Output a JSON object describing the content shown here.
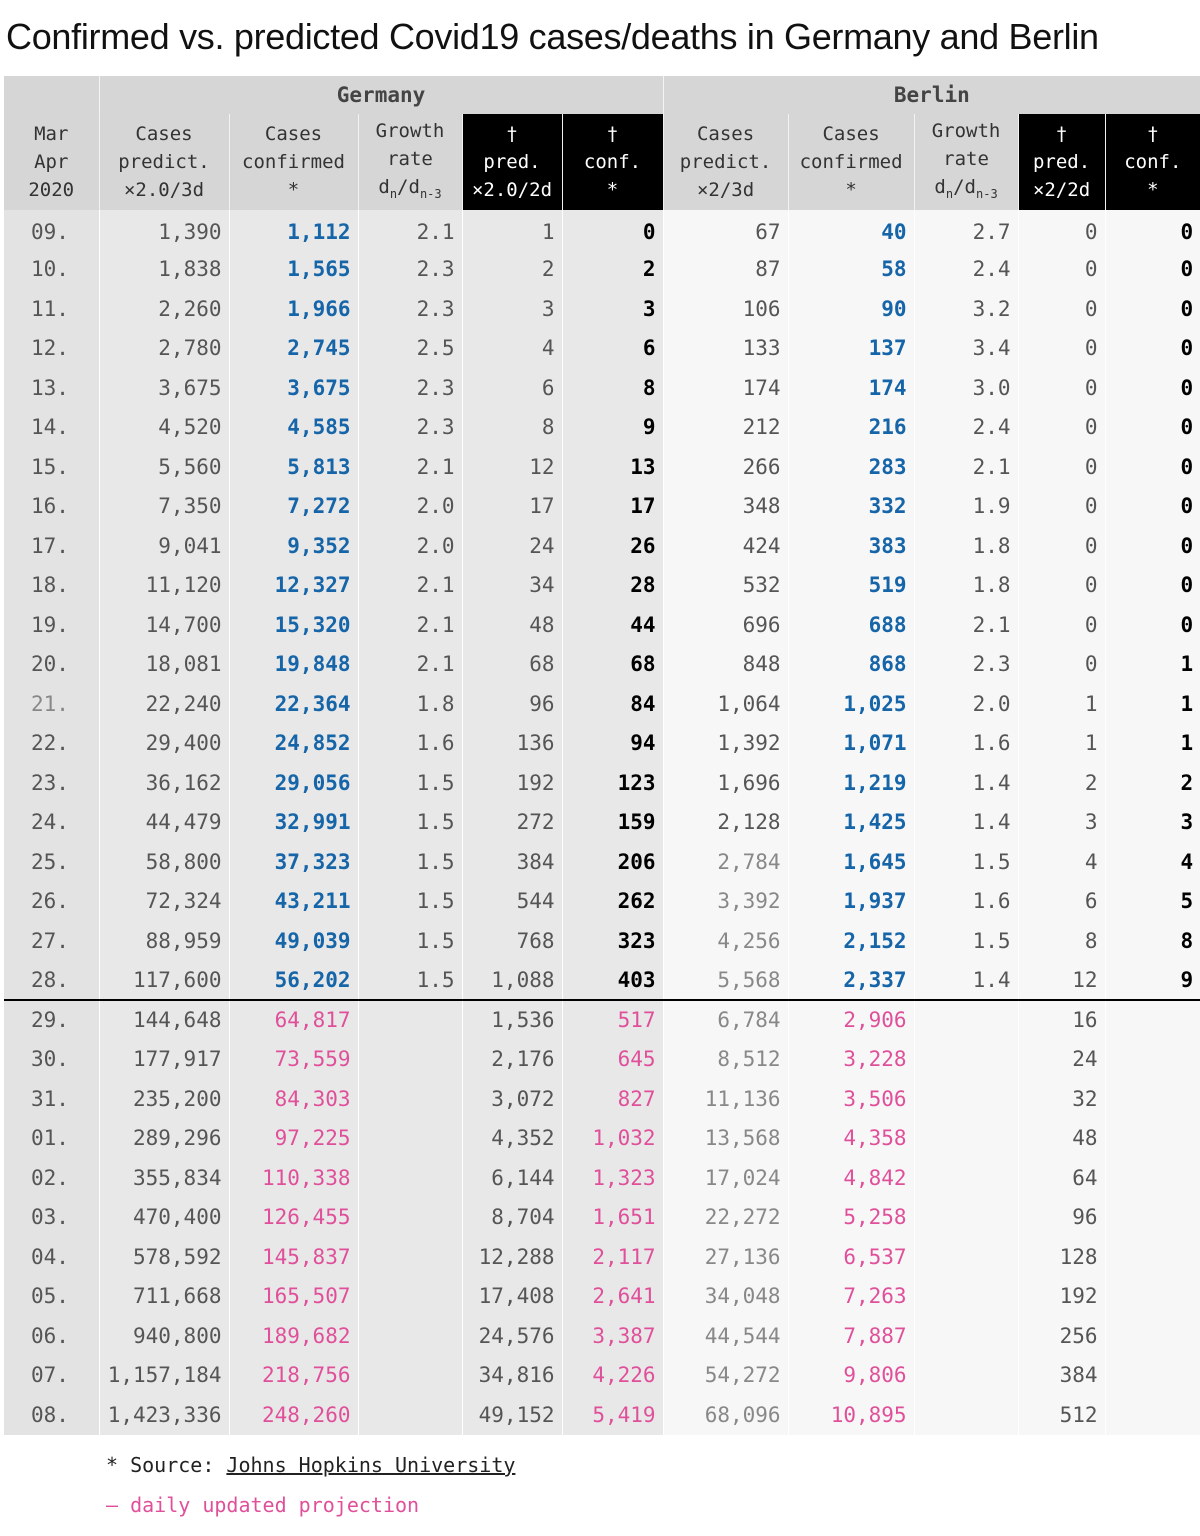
{
  "title": "Confirmed vs. predicted Covid19 cases/deaths in Germany and Berlin",
  "groups": {
    "germany": "Germany",
    "berlin": "Berlin"
  },
  "columns": {
    "date": [
      "Mar",
      "Apr",
      "2020"
    ],
    "ger_pred": [
      "Cases",
      "predict.",
      "×2.0/3d"
    ],
    "ger_conf": [
      "Cases",
      "confirmed",
      "*"
    ],
    "ger_growth": [
      "Growth",
      "rate",
      "dn/dn-3"
    ],
    "ger_dpred": [
      "†",
      "pred.",
      "×2.0/2d"
    ],
    "ger_dconf": [
      "†",
      "conf.",
      "*"
    ],
    "ber_pred": [
      "Cases",
      "predict.",
      "×2/3d"
    ],
    "ber_conf": [
      "Cases",
      "confirmed",
      "*"
    ],
    "ber_growth": [
      "Growth",
      "rate",
      "dn/dn-3"
    ],
    "ber_dpred": [
      "†",
      "pred.",
      "×2/2d"
    ],
    "ber_dconf": [
      "†",
      "conf.",
      "*"
    ]
  },
  "rows": [
    [
      "09.",
      "1,390",
      "1,112",
      "2.1",
      "1",
      "0",
      "67",
      "40",
      "2.7",
      "0",
      "0"
    ],
    [
      "10.",
      "1,838",
      "1,565",
      "2.3",
      "2",
      "2",
      "87",
      "58",
      "2.4",
      "0",
      "0"
    ],
    [
      "11.",
      "2,260",
      "1,966",
      "2.3",
      "3",
      "3",
      "106",
      "90",
      "3.2",
      "0",
      "0"
    ],
    [
      "12.",
      "2,780",
      "2,745",
      "2.5",
      "4",
      "6",
      "133",
      "137",
      "3.4",
      "0",
      "0"
    ],
    [
      "13.",
      "3,675",
      "3,675",
      "2.3",
      "6",
      "8",
      "174",
      "174",
      "3.0",
      "0",
      "0"
    ],
    [
      "14.",
      "4,520",
      "4,585",
      "2.3",
      "8",
      "9",
      "212",
      "216",
      "2.4",
      "0",
      "0"
    ],
    [
      "15.",
      "5,560",
      "5,813",
      "2.1",
      "12",
      "13",
      "266",
      "283",
      "2.1",
      "0",
      "0"
    ],
    [
      "16.",
      "7,350",
      "7,272",
      "2.0",
      "17",
      "17",
      "348",
      "332",
      "1.9",
      "0",
      "0"
    ],
    [
      "17.",
      "9,041",
      "9,352",
      "2.0",
      "24",
      "26",
      "424",
      "383",
      "1.8",
      "0",
      "0"
    ],
    [
      "18.",
      "11,120",
      "12,327",
      "2.1",
      "34",
      "28",
      "532",
      "519",
      "1.8",
      "0",
      "0"
    ],
    [
      "19.",
      "14,700",
      "15,320",
      "2.1",
      "48",
      "44",
      "696",
      "688",
      "2.1",
      "0",
      "0"
    ],
    [
      "20.",
      "18,081",
      "19,848",
      "2.1",
      "68",
      "68",
      "848",
      "868",
      "2.3",
      "0",
      "1"
    ],
    [
      "21.",
      "22,240",
      "22,364",
      "1.8",
      "96",
      "84",
      "1,064",
      "1,025",
      "2.0",
      "1",
      "1"
    ],
    [
      "22.",
      "29,400",
      "24,852",
      "1.6",
      "136",
      "94",
      "1,392",
      "1,071",
      "1.6",
      "1",
      "1"
    ],
    [
      "23.",
      "36,162",
      "29,056",
      "1.5",
      "192",
      "123",
      "1,696",
      "1,219",
      "1.4",
      "2",
      "2"
    ],
    [
      "24.",
      "44,479",
      "32,991",
      "1.5",
      "272",
      "159",
      "2,128",
      "1,425",
      "1.4",
      "3",
      "3"
    ],
    [
      "25.",
      "58,800",
      "37,323",
      "1.5",
      "384",
      "206",
      "2,784",
      "1,645",
      "1.5",
      "4",
      "4"
    ],
    [
      "26.",
      "72,324",
      "43,211",
      "1.5",
      "544",
      "262",
      "3,392",
      "1,937",
      "1.6",
      "6",
      "5"
    ],
    [
      "27.",
      "88,959",
      "49,039",
      "1.5",
      "768",
      "323",
      "4,256",
      "2,152",
      "1.5",
      "8",
      "8"
    ],
    [
      "28.",
      "117,600",
      "56,202",
      "1.5",
      "1,088",
      "403",
      "5,568",
      "2,337",
      "1.4",
      "12",
      "9"
    ],
    [
      "29.",
      "144,648",
      "64,817",
      "",
      "1,536",
      "517",
      "6,784",
      "2,906",
      "",
      "16",
      ""
    ],
    [
      "30.",
      "177,917",
      "73,559",
      "",
      "2,176",
      "645",
      "8,512",
      "3,228",
      "",
      "24",
      ""
    ],
    [
      "31.",
      "235,200",
      "84,303",
      "",
      "3,072",
      "827",
      "11,136",
      "3,506",
      "",
      "32",
      ""
    ],
    [
      "01.",
      "289,296",
      "97,225",
      "",
      "4,352",
      "1,032",
      "13,568",
      "4,358",
      "",
      "48",
      ""
    ],
    [
      "02.",
      "355,834",
      "110,338",
      "",
      "6,144",
      "1,323",
      "17,024",
      "4,842",
      "",
      "64",
      ""
    ],
    [
      "03.",
      "470,400",
      "126,455",
      "",
      "8,704",
      "1,651",
      "22,272",
      "5,258",
      "",
      "96",
      ""
    ],
    [
      "04.",
      "578,592",
      "145,837",
      "",
      "12,288",
      "2,117",
      "27,136",
      "6,537",
      "",
      "128",
      ""
    ],
    [
      "05.",
      "711,668",
      "165,507",
      "",
      "17,408",
      "2,641",
      "34,048",
      "7,263",
      "",
      "192",
      ""
    ],
    [
      "06.",
      "940,800",
      "189,682",
      "",
      "24,576",
      "3,387",
      "44,544",
      "7,887",
      "",
      "256",
      ""
    ],
    [
      "07.",
      "1,157,184",
      "218,756",
      "",
      "34,816",
      "4,226",
      "54,272",
      "9,806",
      "",
      "384",
      ""
    ],
    [
      "08.",
      "1,423,336",
      "248,260",
      "",
      "49,152",
      "5,419",
      "68,096",
      "10,895",
      "",
      "512",
      ""
    ]
  ],
  "footnotes": {
    "source_prefix": "* Source: ",
    "source_link": "Johns Hopkins University",
    "projection": "– daily updated projection"
  },
  "colors": {
    "confirmed": "#1565a8",
    "projection": "#e0509a",
    "header_black": "#000000",
    "header_grey": "#d6d6d6"
  }
}
